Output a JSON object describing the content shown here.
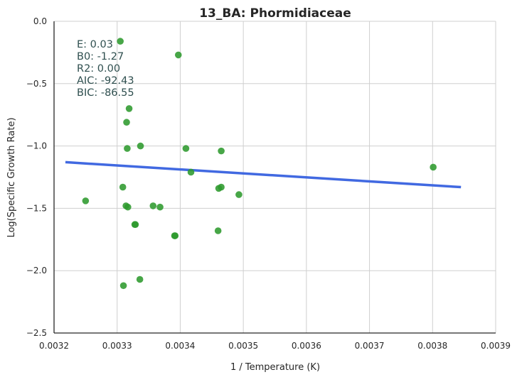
{
  "chart_data": {
    "type": "scatter",
    "title": "13_BA: Phormidiaceae",
    "xlabel": "1 / Temperature (K)",
    "ylabel": "Log(Specific Growth Rate)",
    "xlim": [
      0.0032,
      0.0039
    ],
    "ylim": [
      -2.5,
      0.0
    ],
    "x_ticks": [
      0.0032,
      0.0033,
      0.0034,
      0.0035,
      0.0036,
      0.0037,
      0.0038,
      0.0039
    ],
    "x_tick_labels": [
      "0.0032",
      "0.0033",
      "0.0034",
      "0.0035",
      "0.0036",
      "0.0037",
      "0.0038",
      "0.0039"
    ],
    "y_ticks": [
      0.0,
      -0.5,
      -1.0,
      -1.5,
      -2.0,
      -2.5
    ],
    "y_tick_labels": [
      "0.0",
      "−0.5",
      "−1.0",
      "−1.5",
      "−2.0",
      "−2.5"
    ],
    "grid": true,
    "annotations": [
      "E:  0.03",
      "B0:  -1.27",
      "R2:  0.00",
      "AIC: -92.43",
      "BIC: -86.55"
    ],
    "points": [
      {
        "x": 0.003305,
        "y": -0.16
      },
      {
        "x": 0.003397,
        "y": -0.27
      },
      {
        "x": 0.003319,
        "y": -0.7
      },
      {
        "x": 0.003315,
        "y": -0.81
      },
      {
        "x": 0.003316,
        "y": -1.02
      },
      {
        "x": 0.003337,
        "y": -1.0
      },
      {
        "x": 0.003409,
        "y": -1.02
      },
      {
        "x": 0.003465,
        "y": -1.04
      },
      {
        "x": 0.003417,
        "y": -1.21
      },
      {
        "x": 0.003801,
        "y": -1.17
      },
      {
        "x": 0.003309,
        "y": -1.33
      },
      {
        "x": 0.003461,
        "y": -1.34
      },
      {
        "x": 0.003465,
        "y": -1.33
      },
      {
        "x": 0.003493,
        "y": -1.39
      },
      {
        "x": 0.00325,
        "y": -1.44
      },
      {
        "x": 0.003314,
        "y": -1.48
      },
      {
        "x": 0.003317,
        "y": -1.49
      },
      {
        "x": 0.003357,
        "y": -1.48
      },
      {
        "x": 0.003368,
        "y": -1.49
      },
      {
        "x": 0.003328,
        "y": -1.63
      },
      {
        "x": 0.003329,
        "y": -1.63
      },
      {
        "x": 0.00346,
        "y": -1.68
      },
      {
        "x": 0.003391,
        "y": -1.72
      },
      {
        "x": 0.003392,
        "y": -1.72
      },
      {
        "x": 0.003336,
        "y": -2.07
      },
      {
        "x": 0.00331,
        "y": -2.12
      }
    ],
    "fit_line": {
      "x": [
        0.003218,
        0.003845
      ],
      "y": [
        -1.13,
        -1.33
      ]
    },
    "point_color": "#2e9a2e",
    "line_color": "#4169e1"
  }
}
